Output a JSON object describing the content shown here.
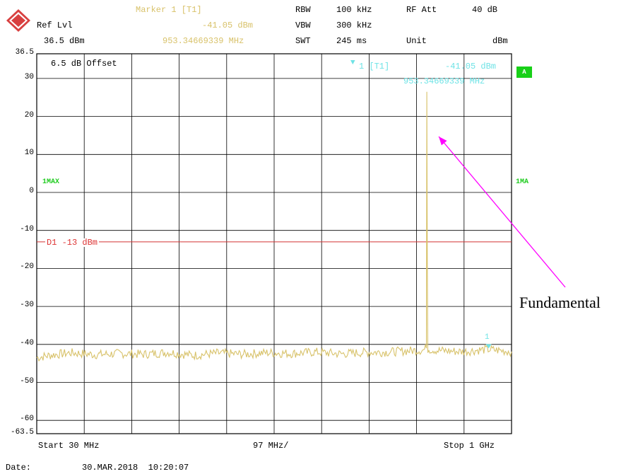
{
  "header": {
    "marker_title": "Marker 1 [T1]",
    "marker_level": "-41.05 dBm",
    "marker_freq": "953.34669339 MHz",
    "ref_lvl_label": "Ref Lvl",
    "ref_lvl_value": "36.5 dBm",
    "rbw_label": "RBW",
    "rbw_value": "100 kHz",
    "vbw_label": "VBW",
    "vbw_value": "300 kHz",
    "swt_label": "SWT",
    "swt_value": "245 ms",
    "rfatt_label": "RF Att",
    "rfatt_value": "40 dB",
    "unit_label": "Unit",
    "unit_value": "dBm"
  },
  "plot": {
    "offset_text": "6.5 dB Offset",
    "trace_label_left": "1MAX",
    "trace_label_right": "1MA",
    "badge": "A",
    "marker_readout_id": "1 [T1]",
    "marker_readout_level": "-41.05 dBm",
    "marker_readout_freq": "953.34669339 MHz",
    "marker_number": "1",
    "display_line_label": "D1 -13 dBm"
  },
  "footer": {
    "start": "Start 30 MHz",
    "span_per_div": "97 MHz/",
    "stop": "Stop 1 GHz",
    "date_label": "Date:",
    "date_value": "30.MAR.2018  10:20:07"
  },
  "annotation": "Fundamental",
  "colors": {
    "trace": "#d8c26a",
    "marker": "#6fe3e6",
    "display_line": "#d33333",
    "arrow": "#ff00ff",
    "label_green": "#1ecb1e"
  },
  "chart_data": {
    "type": "line",
    "xlabel": "",
    "ylabel": "",
    "xlim": [
      30,
      1000
    ],
    "ylim": [
      -63.5,
      36.5
    ],
    "x_unit": "MHz",
    "y_unit": "dBm",
    "ytick_labels": [
      "36.5",
      "30",
      "20",
      "10",
      "0",
      "-10",
      "-20",
      "-30",
      "-40",
      "-50",
      "-60",
      "-63.5"
    ],
    "ytick_values": [
      36.5,
      30,
      20,
      10,
      0,
      -10,
      -20,
      -30,
      -40,
      -50,
      -60,
      -63.5
    ],
    "grid": true,
    "display_line_dbm": -13,
    "noise_floor_dbm": -42.5,
    "series": [
      {
        "values": [
          {
            "x": 30,
            "y": -43.5
          },
          {
            "x": 60,
            "y": -42.8
          },
          {
            "x": 100,
            "y": -42.2
          },
          {
            "x": 150,
            "y": -42.7
          },
          {
            "x": 200,
            "y": -42.4
          },
          {
            "x": 250,
            "y": -42.6
          },
          {
            "x": 300,
            "y": -42.1
          },
          {
            "x": 350,
            "y": -42.9
          },
          {
            "x": 400,
            "y": -42.3
          },
          {
            "x": 450,
            "y": -42.6
          },
          {
            "x": 500,
            "y": -42.2
          },
          {
            "x": 550,
            "y": -42.4
          },
          {
            "x": 600,
            "y": -42.0
          },
          {
            "x": 650,
            "y": -42.5
          },
          {
            "x": 700,
            "y": -42.1
          },
          {
            "x": 750,
            "y": -42.0
          },
          {
            "x": 800,
            "y": -41.6
          },
          {
            "x": 820,
            "y": -41.5
          },
          {
            "x": 826,
            "y": -41.0
          },
          {
            "x": 827,
            "y": 26.5
          },
          {
            "x": 828,
            "y": -18.0
          },
          {
            "x": 829,
            "y": -41.2
          },
          {
            "x": 850,
            "y": -41.6
          },
          {
            "x": 900,
            "y": -41.9
          },
          {
            "x": 950,
            "y": -41.3
          },
          {
            "x": 1000,
            "y": -41.9
          }
        ]
      }
    ],
    "marker": {
      "x": 953.34669339,
      "y": -41.05
    }
  }
}
